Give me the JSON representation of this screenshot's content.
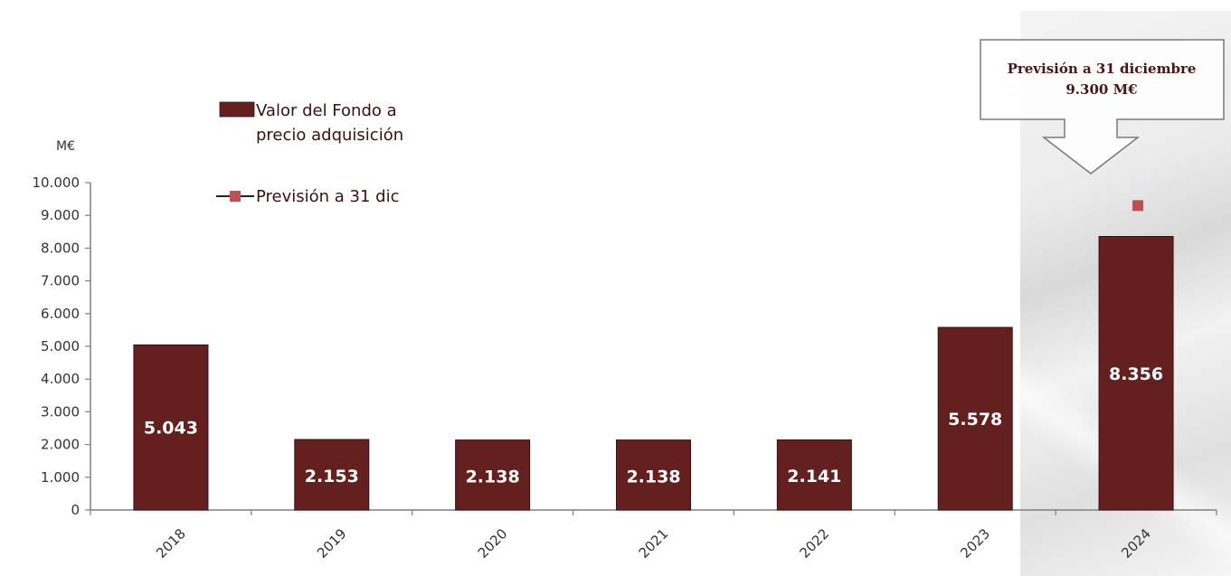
{
  "chart_data": {
    "type": "bar",
    "title": "",
    "xlabel": "",
    "ylabel": "M€",
    "ylim": [
      0,
      10000
    ],
    "yticks": [
      0,
      1000,
      2000,
      3000,
      4000,
      5000,
      6000,
      7000,
      8000,
      9000,
      10000
    ],
    "ytick_labels": [
      "0",
      "1.000",
      "2.000",
      "3.000",
      "4.000",
      "5.000",
      "6.000",
      "7.000",
      "8.000",
      "9.000",
      "10.000"
    ],
    "categories": [
      "2018",
      "2019",
      "2020",
      "2021",
      "2022",
      "2023",
      "2024"
    ],
    "series": [
      {
        "name": "Valor del Fondo a precio adquisición",
        "kind": "bar",
        "color": "#64201f",
        "values": [
          5043,
          2153,
          2138,
          2138,
          2141,
          5578,
          8356
        ],
        "value_labels": [
          "5.043",
          "2.153",
          "2.138",
          "2.138",
          "2.141",
          "5.578",
          "8.356"
        ]
      },
      {
        "name": "Previsión a 31 dic",
        "kind": "marker",
        "color": "#c0504d",
        "values": [
          null,
          null,
          null,
          null,
          null,
          null,
          9300
        ]
      }
    ],
    "legend": {
      "position": "top-left-inside",
      "entries": [
        "Valor del Fondo a precio adquisición",
        "Previsión a 31 dic"
      ]
    },
    "annotations": [
      {
        "text_line1": "Previsión a 31 diciembre",
        "text_line2": "9.300 M€",
        "target": "2024",
        "style": "down-arrow callout"
      }
    ],
    "grid": false
  },
  "legend": {
    "bar_line1": "Valor del Fondo a",
    "bar_line2": "precio adquisición",
    "marker": "Previsión a 31 dic"
  },
  "unit": "M€",
  "callout": {
    "line1": "Previsión a 31 diciembre",
    "line2": "9.300 M€"
  },
  "colors": {
    "bar": "#64201f",
    "marker": "#c0504d",
    "axis": "#7f7f7f"
  }
}
